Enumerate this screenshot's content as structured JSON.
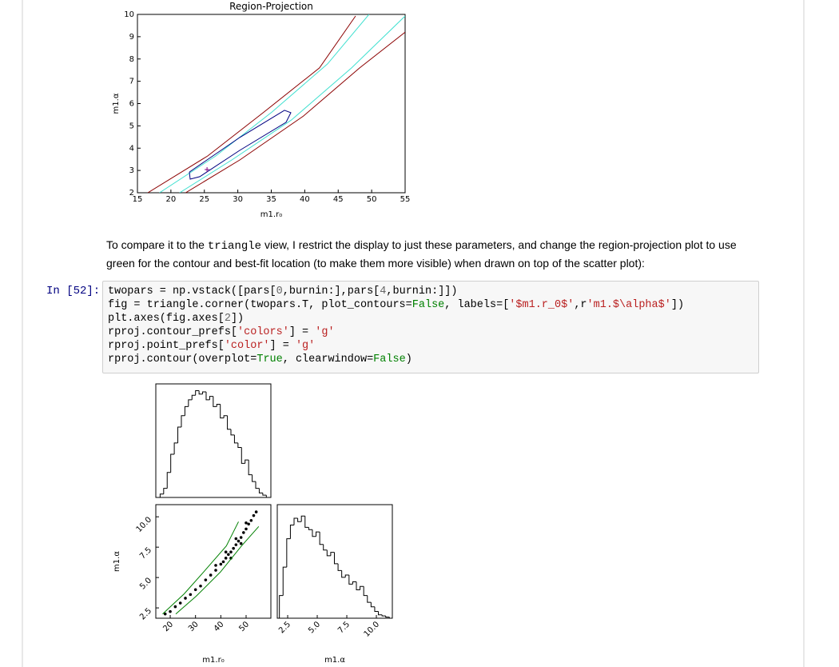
{
  "notebook": {
    "paragraph": {
      "before": "To compare it to the ",
      "code": "triangle",
      "after": " view, I restrict the display to just these parameters, and change the region-projection plot to use green for the contour and best-fit location (to make them more visible) when drawn on top of the scatter plot):"
    },
    "prompt": "In [52]:",
    "code_lines": [
      "twopars = np.vstack([pars[0,burnin:],pars[4,burnin:]])",
      "fig = triangle.corner(twopars.T, plot_contours=False, labels=['$m1.r_0$',r'm1.$\\alpha$'])",
      "plt.axes(fig.axes[2])",
      "rproj.contour_prefs['colors'] = 'g'",
      "rproj.point_prefs['color'] = 'g'",
      "rproj.contour(overplot=True, clearwindow=False)"
    ]
  },
  "chart_data": [
    {
      "type": "contour",
      "title": "Region-Projection",
      "x_label": "m1.r₀",
      "y_label": "m1.α",
      "xlim": [
        15,
        55
      ],
      "ylim": [
        2,
        10
      ],
      "xticks": [
        15,
        20,
        25,
        30,
        35,
        40,
        45,
        50,
        55
      ],
      "yticks": [
        2,
        3,
        4,
        5,
        6,
        7,
        8,
        9,
        10
      ],
      "series": [
        {
          "color": "#8b0000",
          "x": [
            16.55,
            25.5,
            33.9,
            42.2,
            47.6
          ],
          "y": [
            2,
            3.65,
            5.62,
            7.6,
            9.93
          ]
        },
        {
          "color": "#8b0000",
          "x": [
            22.2,
            30.3,
            39.8,
            48.2,
            55
          ],
          "y": [
            2,
            3.47,
            5.44,
            7.6,
            9.2
          ]
        },
        {
          "color": "#40e0d0",
          "x": [
            18.3,
            26.7,
            35.1,
            43.4,
            49.6
          ],
          "y": [
            2,
            3.65,
            5.62,
            7.78,
            10
          ]
        },
        {
          "color": "#40e0d0",
          "x": [
            21.3,
            29.1,
            38,
            47,
            55
          ],
          "y": [
            2,
            3.47,
            5.26,
            7.6,
            9.93
          ]
        },
        {
          "color": "#000080",
          "x": [
            22.76,
            22.88,
            24.31,
            30.28,
            37.21,
            37.93,
            36.97,
            30.28,
            22.76
          ],
          "y": [
            2.93,
            2.61,
            2.72,
            3.9,
            5.16,
            5.59,
            5.7,
            4.48,
            2.93
          ]
        }
      ],
      "best_fit": {
        "x": 25.4,
        "y": 3.04,
        "color": "#800080"
      }
    },
    {
      "type": "histogram",
      "color": "#000000",
      "xlim": [
        14.3,
        59.8
      ],
      "ylim": [
        0,
        100
      ],
      "bins": [
        16,
        17.4,
        18.8,
        20.2,
        21.6,
        23,
        24.4,
        25.8,
        27.2,
        28.6,
        30,
        31.4,
        32.8,
        34.2,
        35.6,
        37,
        38.4,
        39.8,
        41.2,
        42.6,
        44,
        45.4,
        46.8,
        48.2,
        49.6,
        51,
        52.4,
        53.8,
        55.2,
        56.6,
        58
      ],
      "counts": [
        3,
        8,
        22,
        38,
        48,
        62,
        72,
        80,
        86,
        90,
        94,
        91,
        93,
        86,
        89,
        80,
        82,
        70,
        72,
        60,
        55,
        48,
        44,
        30,
        33,
        20,
        14,
        8,
        4,
        2
      ]
    },
    {
      "type": "scatter",
      "color": "#000000",
      "x_label": "m1.r₀",
      "y_label": "m1.α",
      "tick_rotation": 45,
      "xlim": [
        14.3,
        59.8
      ],
      "ylim": [
        1.65,
        11
      ],
      "xticks": [
        20,
        30,
        40,
        50
      ],
      "yticks": [
        2.5,
        {
          "value": 5,
          "label": "5.0"
        },
        7.5,
        {
          "value": 10,
          "label": "10.0"
        }
      ],
      "x": [
        18,
        20,
        22,
        24,
        26,
        28,
        30,
        32,
        34,
        36,
        38,
        40,
        41,
        42,
        43,
        44,
        45,
        46,
        47,
        48,
        49,
        50,
        51,
        52,
        53,
        54,
        42,
        44,
        46,
        48,
        50,
        38
      ],
      "y": [
        2.0,
        2.2,
        2.6,
        2.9,
        3.3,
        3.6,
        4.0,
        4.3,
        4.8,
        5.2,
        5.6,
        6.1,
        6.3,
        6.6,
        6.9,
        7.1,
        7.4,
        7.7,
        8.0,
        8.3,
        8.7,
        9.0,
        9.4,
        9.7,
        10.1,
        10.4,
        7.1,
        6.6,
        8.2,
        7.8,
        9.5,
        6.0
      ],
      "contours": [
        {
          "color": "#008000",
          "x": [
            17,
            25.5,
            33.9,
            42.2,
            47
          ],
          "y": [
            2,
            3.65,
            5.62,
            7.6,
            9.6
          ]
        },
        {
          "color": "#008000",
          "x": [
            22.2,
            30.3,
            39.8,
            48.2,
            55
          ],
          "y": [
            2,
            3.47,
            5.44,
            7.6,
            9.2
          ]
        }
      ]
    },
    {
      "type": "histogram",
      "color": "#000000",
      "x_label": "m1.α",
      "tick_rotation": 45,
      "xlim": [
        1.62,
        11.35
      ],
      "ylim": [
        0,
        100
      ],
      "xticks": [
        2.5,
        {
          "value": 5,
          "label": "5.0"
        },
        7.5,
        {
          "value": 10,
          "label": "10.0"
        }
      ],
      "bins": [
        1.8,
        2.11,
        2.42,
        2.73,
        3.04,
        3.35,
        3.66,
        3.97,
        4.28,
        4.59,
        4.9,
        5.21,
        5.52,
        5.83,
        6.14,
        6.45,
        6.76,
        7.07,
        7.38,
        7.69,
        8,
        8.31,
        8.62,
        8.93,
        9.24,
        9.55,
        9.86,
        10.17,
        10.48,
        10.79,
        11.1
      ],
      "counts": [
        20,
        45,
        70,
        82,
        88,
        85,
        90,
        80,
        78,
        72,
        76,
        65,
        60,
        55,
        58,
        48,
        42,
        36,
        38,
        30,
        32,
        25,
        28,
        20,
        14,
        10,
        6,
        3,
        2,
        1
      ]
    }
  ]
}
